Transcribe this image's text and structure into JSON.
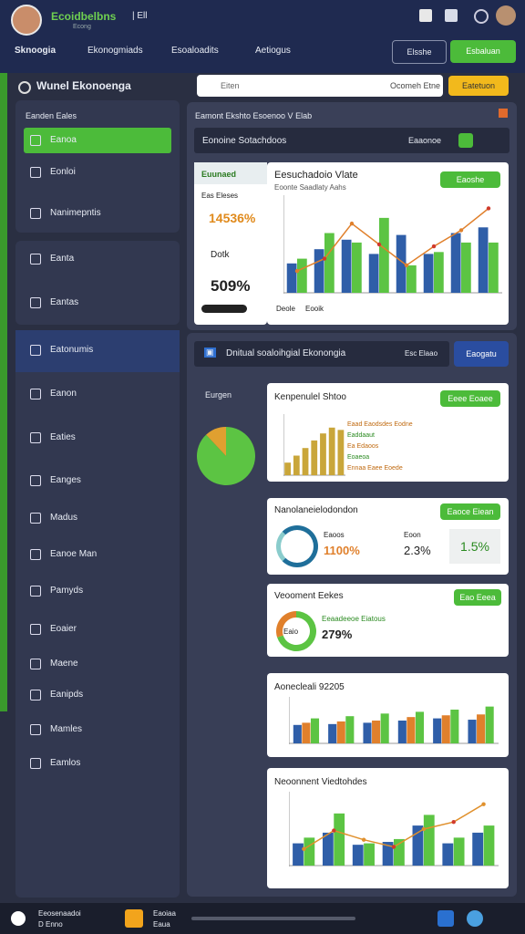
{
  "header": {
    "brand": "Ecoidbelbns",
    "brand_sub": "Econg",
    "tag": "| Ell",
    "nav": [
      "Sknoogia",
      "Ekonogmiads",
      "Esoaloadits",
      "Aetiogus"
    ],
    "button_outline": "Elsshe",
    "button_primary": "Esbaluan"
  },
  "sidebar": {
    "title": "Wunel Ekonoenga",
    "section": "Eanden Eales",
    "items": [
      "Eanoa",
      "Eonloi",
      "Nanimepntis",
      "Eanta",
      "Eantas",
      "Eatonumis",
      "Eanon",
      "Eaties",
      "Eanges",
      "Madus",
      "Eanoe Man",
      "Pamyds",
      "Eoaier",
      "Maene",
      "Eanipds",
      "Mamles",
      "Eamlos"
    ]
  },
  "search": {
    "placeholder": "Eiten",
    "hint": "Ocomeh Etne",
    "button": "Eatetuon"
  },
  "panel1": {
    "title": "Eamont Ekshto Esoenoo V Elab",
    "subtitle": "Eonoine Sotachdoos",
    "action": "Eaaonoe",
    "card": {
      "label": "Euunaed",
      "sub": "Eas Eleses",
      "stat1": "14536%",
      "stat2_label": "Dotk",
      "stat2": "509%"
    },
    "chart": {
      "title": "Eesuchadoio Vlate",
      "subtitle": "Eoonte Saadlaty Aahs",
      "button": "Eaoshe",
      "legend": [
        "Deole",
        "Eooik"
      ],
      "ylim": [
        0,
        100
      ],
      "series": [
        {
          "color": "#2f5ea8",
          "values": [
            30,
            45,
            55,
            40,
            60,
            40,
            62,
            68
          ]
        },
        {
          "color": "#5cc443",
          "values": [
            35,
            62,
            52,
            78,
            28,
            42,
            52,
            52
          ]
        }
      ],
      "line": {
        "color": "#e0802c",
        "values": [
          22,
          35,
          72,
          50,
          28,
          48,
          65,
          88
        ]
      }
    }
  },
  "panel2": {
    "title": "Dnitual soaloihgial Ekonongia",
    "tag": "Esc Elaao",
    "button": "Eaogatu",
    "pie_label": "Eurgen",
    "pie": {
      "values": [
        88,
        12
      ],
      "colors": [
        "#5cc443",
        "#e0a030"
      ]
    },
    "card1": {
      "title": "Kenpenulel Shtoo",
      "button": "Eeee Eoaee",
      "legend": [
        "Eaad Eaodsdes Eodne",
        "Eaddaaut",
        "Ea Edaoos",
        "Eoaeoa",
        "Ennaa Eaee Eoede"
      ],
      "ylim": [
        0,
        100
      ],
      "series": [
        {
          "color": "#c9a63a",
          "values": [
            20,
            32,
            45,
            58,
            70,
            80,
            76
          ]
        }
      ]
    },
    "card2": {
      "title": "Nanolaneielodondon",
      "button": "Eaoce Eiean",
      "s1_label": "Eaoos",
      "s1": "1100%",
      "s2_label": "Eoon",
      "s2": "2.3%",
      "s3": "1.5%"
    },
    "card3": {
      "title": "Veooment Eekes",
      "button": "Eao Eeea",
      "legend": "Eeaadeeoe Eiatous",
      "ring_label": "Eaio",
      "stat": "279%",
      "ring": {
        "values": [
          70,
          30
        ],
        "colors": [
          "#5cc443",
          "#e0802c"
        ]
      }
    },
    "card4": {
      "title": "Aonecleali 92205",
      "ylim": [
        0,
        100
      ],
      "series": [
        {
          "color": "#2f5ea8",
          "values": [
            40,
            42,
            45,
            50,
            55,
            52
          ]
        },
        {
          "color": "#e0802c",
          "values": [
            45,
            48,
            50,
            58,
            62,
            64
          ]
        },
        {
          "color": "#5cc443",
          "values": [
            55,
            60,
            66,
            70,
            75,
            82
          ]
        }
      ]
    },
    "card5": {
      "title": "Neoonnent Viedtohdes",
      "ylim": [
        0,
        100
      ],
      "series": [
        {
          "color": "#2f5ea8",
          "values": [
            30,
            45,
            28,
            32,
            55,
            30,
            45
          ]
        },
        {
          "color": "#5cc443",
          "values": [
            38,
            72,
            30,
            36,
            70,
            38,
            55
          ]
        }
      ],
      "line": {
        "color": "#e0902c",
        "values": [
          22,
          48,
          35,
          25,
          50,
          60,
          85
        ]
      }
    }
  },
  "taskbar": {
    "app1": "Eeosenaadoi",
    "app1_sub": "D Enno",
    "app2": "Eaoiaa",
    "app2_sub": "Eaua"
  }
}
